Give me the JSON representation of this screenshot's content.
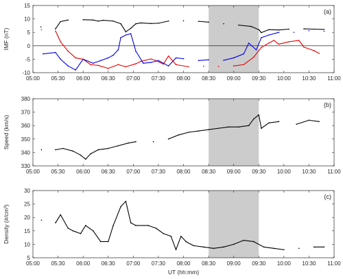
{
  "x_axis": {
    "label": "UT (hh:mm)",
    "ticks": [
      "05:00",
      "05:30",
      "06:00",
      "06:30",
      "07:00",
      "07:30",
      "08:00",
      "08:30",
      "09:00",
      "09:30",
      "10:00",
      "10:30",
      "11:00"
    ],
    "range_hours": [
      5,
      11
    ]
  },
  "highlight": {
    "start": "08:30",
    "end": "09:30",
    "color": "#cccccc"
  },
  "chart_data": [
    {
      "type": "line",
      "panel_label": "(a)",
      "ylabel": "IMF (nT)",
      "ylim": [
        -10,
        15
      ],
      "yticks": [
        -10,
        -5,
        0,
        5,
        10,
        15
      ],
      "zero_line": true,
      "series": [
        {
          "color": "#000000",
          "points": [
            [
              5.16,
              7
            ],
            [
              5.45,
              6.3
            ],
            [
              5.55,
              9
            ],
            [
              5.7,
              9.6
            ],
            [
              6.0,
              9.7
            ],
            [
              6.2,
              9.6
            ],
            [
              6.3,
              9.2
            ],
            [
              6.4,
              9.5
            ],
            [
              6.6,
              9.2
            ],
            [
              6.75,
              8.2
            ],
            [
              6.85,
              5.2
            ],
            [
              6.95,
              6.5
            ],
            [
              7.05,
              8.2
            ],
            [
              7.15,
              8.5
            ],
            [
              7.35,
              8.3
            ],
            [
              7.5,
              8.4
            ],
            [
              7.7,
              9.2
            ],
            [
              8.0,
              9.3
            ],
            [
              8.3,
              9.1
            ],
            [
              8.5,
              8.8
            ],
            [
              8.8,
              8.2
            ],
            [
              9.1,
              7.7
            ],
            [
              9.35,
              7.2
            ],
            [
              9.5,
              6.0
            ],
            [
              9.55,
              4.9
            ],
            [
              9.7,
              6.0
            ],
            [
              9.9,
              5.9
            ],
            [
              10.1,
              6.2
            ],
            [
              10.4,
              6.3
            ],
            [
              10.6,
              6.2
            ],
            [
              10.8,
              6.1
            ]
          ]
        },
        {
          "color": "#e60000",
          "points": [
            [
              5.17,
              6
            ],
            [
              5.45,
              5.5
            ],
            [
              5.55,
              1.5
            ],
            [
              5.7,
              -2
            ],
            [
              5.85,
              -4.5
            ],
            [
              6.0,
              -5
            ],
            [
              6.15,
              -7
            ],
            [
              6.3,
              -7.3
            ],
            [
              6.5,
              -8.4
            ],
            [
              6.7,
              -7
            ],
            [
              6.85,
              -7.8
            ],
            [
              7.05,
              -6.7
            ],
            [
              7.15,
              -5.8
            ],
            [
              7.35,
              -4.9
            ],
            [
              7.45,
              -5.5
            ],
            [
              7.6,
              -6.8
            ],
            [
              7.7,
              -3.8
            ],
            [
              7.85,
              -7
            ],
            [
              8.1,
              -7.8
            ],
            [
              8.4,
              -7.6
            ],
            [
              8.7,
              -7.7
            ],
            [
              9.0,
              -7.5
            ],
            [
              9.2,
              -7.0
            ],
            [
              9.4,
              -4.2
            ],
            [
              9.55,
              -0.6
            ],
            [
              9.7,
              1.0
            ],
            [
              9.8,
              2.0
            ],
            [
              9.9,
              0.6
            ],
            [
              10.1,
              1.5
            ],
            [
              10.3,
              2.0
            ],
            [
              10.4,
              -0.5
            ],
            [
              10.6,
              -1.8
            ],
            [
              10.7,
              -2.8
            ]
          ]
        },
        {
          "color": "#0000e6",
          "points": [
            [
              5.2,
              -3
            ],
            [
              5.45,
              -2.5
            ],
            [
              5.55,
              -5
            ],
            [
              5.7,
              -7.5
            ],
            [
              5.85,
              -9
            ],
            [
              6.0,
              -5
            ],
            [
              6.2,
              -6.5
            ],
            [
              6.35,
              -5.5
            ],
            [
              6.5,
              -4.5
            ],
            [
              6.6,
              -3.5
            ],
            [
              6.7,
              -1.5
            ],
            [
              6.75,
              3.0
            ],
            [
              6.85,
              4.0
            ],
            [
              6.95,
              4.5
            ],
            [
              7.05,
              -2
            ],
            [
              7.2,
              -6.5
            ],
            [
              7.35,
              -6.2
            ],
            [
              7.5,
              -5.5
            ],
            [
              7.7,
              -7.5
            ],
            [
              7.85,
              -4.5
            ],
            [
              8.0,
              -4.8
            ],
            [
              8.3,
              -5.5
            ],
            [
              8.5,
              -5.2
            ],
            [
              8.8,
              -5.4
            ],
            [
              9.0,
              -4.5
            ],
            [
              9.2,
              -3.0
            ],
            [
              9.3,
              1.0
            ],
            [
              9.45,
              -1.5
            ],
            [
              9.55,
              3.0
            ],
            [
              9.7,
              4.0
            ],
            [
              9.9,
              5.0
            ],
            [
              10.2,
              5.0
            ],
            [
              10.5,
              5.6
            ],
            [
              10.8,
              5.4
            ]
          ]
        }
      ]
    },
    {
      "type": "line",
      "panel_label": "(b)",
      "ylabel": "Speed (km/s)",
      "ylim": [
        330,
        380
      ],
      "yticks": [
        330,
        340,
        350,
        360,
        370,
        380
      ],
      "series": [
        {
          "color": "#000000",
          "points": [
            [
              5.17,
              342
            ],
            [
              5.45,
              342
            ],
            [
              5.6,
              343
            ],
            [
              5.8,
              341
            ],
            [
              5.95,
              338
            ],
            [
              6.05,
              335
            ],
            [
              6.15,
              339
            ],
            [
              6.3,
              342
            ],
            [
              6.5,
              343
            ],
            [
              6.7,
              345
            ],
            [
              6.9,
              347
            ],
            [
              7.05,
              348
            ],
            [
              7.4,
              348
            ],
            [
              7.7,
              350
            ],
            [
              7.9,
              353
            ],
            [
              8.1,
              355
            ],
            [
              8.3,
              356
            ],
            [
              8.5,
              357
            ],
            [
              8.7,
              358
            ],
            [
              8.9,
              359
            ],
            [
              9.1,
              359
            ],
            [
              9.3,
              360
            ],
            [
              9.4,
              365
            ],
            [
              9.5,
              368
            ],
            [
              9.55,
              358
            ],
            [
              9.7,
              362
            ],
            [
              9.9,
              363
            ],
            [
              10.25,
              361
            ],
            [
              10.5,
              364
            ],
            [
              10.7,
              363
            ]
          ]
        }
      ]
    },
    {
      "type": "line",
      "panel_label": "(c)",
      "ylabel": "Density (#/cm³)",
      "ylim": [
        5,
        30
      ],
      "yticks": [
        5,
        10,
        15,
        20,
        25,
        30
      ],
      "series": [
        {
          "color": "#000000",
          "points": [
            [
              5.17,
              19
            ],
            [
              5.45,
              18
            ],
            [
              5.55,
              21
            ],
            [
              5.7,
              16
            ],
            [
              5.8,
              15
            ],
            [
              5.95,
              14
            ],
            [
              6.05,
              17
            ],
            [
              6.2,
              15
            ],
            [
              6.35,
              11
            ],
            [
              6.5,
              11
            ],
            [
              6.6,
              17
            ],
            [
              6.75,
              24
            ],
            [
              6.85,
              26
            ],
            [
              6.95,
              18
            ],
            [
              7.05,
              17
            ],
            [
              7.3,
              17
            ],
            [
              7.45,
              16
            ],
            [
              7.6,
              14
            ],
            [
              7.75,
              13
            ],
            [
              7.85,
              8
            ],
            [
              7.95,
              13
            ],
            [
              8.05,
              11
            ],
            [
              8.2,
              9.5
            ],
            [
              8.4,
              9
            ],
            [
              8.6,
              8.5
            ],
            [
              8.8,
              9
            ],
            [
              9.0,
              10
            ],
            [
              9.2,
              11.5
            ],
            [
              9.4,
              11
            ],
            [
              9.6,
              9
            ],
            [
              9.8,
              8.5
            ],
            [
              10.0,
              8
            ],
            [
              10.3,
              8.5
            ],
            [
              10.6,
              9
            ],
            [
              10.8,
              9
            ]
          ]
        }
      ]
    }
  ]
}
